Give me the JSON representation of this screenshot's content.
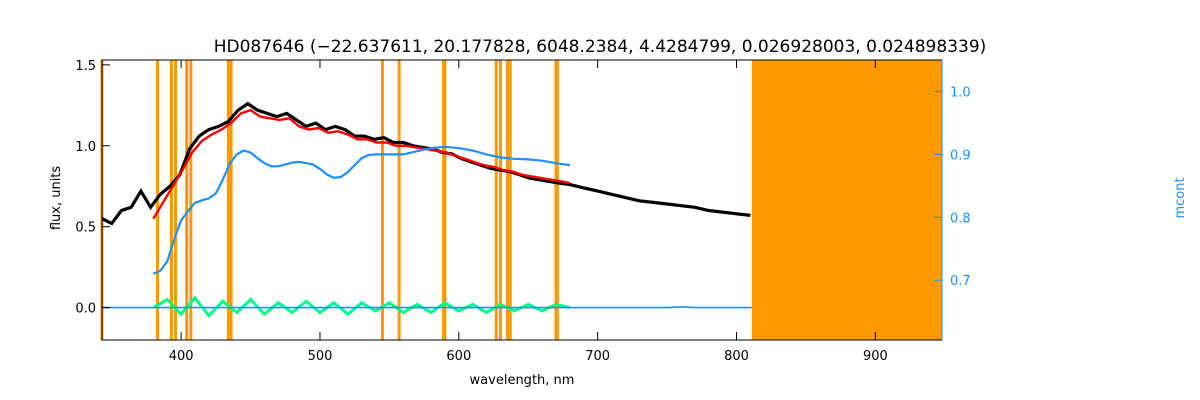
{
  "chart_data": {
    "type": "line",
    "title": "HD087646   (−22.637611, 20.177828, 6048.2384, 4.4284799, 0.026928003, 0.024898339)",
    "xlabel": "wavelength, nm",
    "ylabel": "flux, units",
    "y2label": "mcont",
    "xlim": [
      343,
      948
    ],
    "ylim": [
      -0.2,
      1.53
    ],
    "y2lim": [
      0.605,
      1.05
    ],
    "x_ticks": [
      400,
      500,
      600,
      700,
      800,
      900
    ],
    "x_tick_labels": [
      "400",
      "500",
      "600",
      "700",
      "800",
      "900"
    ],
    "y_ticks": [
      0.0,
      0.5,
      1.0,
      1.5
    ],
    "y_tick_labels": [
      "0.0",
      "0.5",
      "1.0",
      "1.5"
    ],
    "y2_ticks": [
      0.7,
      0.8,
      0.9,
      1.0
    ],
    "y2_tick_labels": [
      "0.7",
      "0.8",
      "0.9",
      "1.0"
    ],
    "grid": false,
    "colors": {
      "observed": "#000000",
      "model": "#ff0000",
      "continuum": "#1e90ff",
      "residuals": "#00ff7f",
      "masks": "#ff9900",
      "right_axis": "#1e90ff"
    },
    "masked_region": [
      811,
      948
    ],
    "mask_lines": [
      343,
      383,
      393,
      396,
      404,
      407,
      434,
      436,
      545,
      557,
      589,
      590,
      627,
      630,
      635,
      637,
      670,
      671
    ],
    "series": [
      {
        "key": "observed",
        "x": [
          343,
          350,
          357,
          364,
          371,
          378,
          385,
          392,
          399,
          406,
          413,
          420,
          427,
          434,
          441,
          448,
          455,
          462,
          469,
          476,
          483,
          490,
          497,
          504,
          511,
          518,
          525,
          532,
          539,
          546,
          553,
          560,
          567,
          574,
          581,
          588,
          595,
          602,
          609,
          616,
          623,
          630,
          637,
          644,
          651,
          658,
          665,
          672,
          680,
          690,
          700,
          710,
          720,
          730,
          740,
          750,
          760,
          770,
          780,
          790,
          800,
          810
        ],
        "y": [
          0.55,
          0.52,
          0.6,
          0.62,
          0.72,
          0.62,
          0.7,
          0.75,
          0.82,
          0.98,
          1.06,
          1.1,
          1.12,
          1.15,
          1.22,
          1.26,
          1.22,
          1.2,
          1.18,
          1.2,
          1.16,
          1.12,
          1.14,
          1.1,
          1.12,
          1.1,
          1.06,
          1.06,
          1.04,
          1.05,
          1.02,
          1.02,
          1.0,
          0.99,
          0.98,
          0.96,
          0.95,
          0.92,
          0.9,
          0.88,
          0.86,
          0.85,
          0.84,
          0.82,
          0.8,
          0.79,
          0.78,
          0.77,
          0.76,
          0.74,
          0.72,
          0.7,
          0.68,
          0.66,
          0.65,
          0.64,
          0.63,
          0.62,
          0.6,
          0.59,
          0.58,
          0.57
        ]
      },
      {
        "key": "model",
        "x": [
          380,
          387,
          394,
          401,
          408,
          415,
          422,
          429,
          436,
          443,
          450,
          457,
          464,
          471,
          478,
          485,
          492,
          499,
          506,
          513,
          520,
          527,
          534,
          541,
          548,
          555,
          562,
          569,
          576,
          583,
          590,
          597,
          604,
          611,
          618,
          625,
          632,
          639,
          646,
          653,
          660,
          667,
          674,
          680
        ],
        "y": [
          0.55,
          0.65,
          0.75,
          0.85,
          0.96,
          1.03,
          1.07,
          1.1,
          1.14,
          1.2,
          1.22,
          1.18,
          1.17,
          1.16,
          1.17,
          1.12,
          1.1,
          1.11,
          1.08,
          1.09,
          1.07,
          1.04,
          1.04,
          1.02,
          1.02,
          1.0,
          1.0,
          0.99,
          0.98,
          0.97,
          0.96,
          0.94,
          0.92,
          0.9,
          0.88,
          0.87,
          0.85,
          0.84,
          0.82,
          0.81,
          0.8,
          0.79,
          0.78,
          0.77
        ]
      },
      {
        "key": "continuum",
        "axis": "right",
        "x": [
          380,
          385,
          390,
          395,
          400,
          405,
          410,
          415,
          420,
          425,
          430,
          435,
          440,
          445,
          450,
          455,
          460,
          465,
          470,
          475,
          480,
          485,
          490,
          495,
          500,
          505,
          510,
          515,
          520,
          525,
          530,
          535,
          540,
          550,
          560,
          570,
          580,
          590,
          600,
          610,
          620,
          630,
          640,
          650,
          660,
          670,
          680
        ],
        "y": [
          0.71,
          0.715,
          0.73,
          0.765,
          0.795,
          0.81,
          0.823,
          0.827,
          0.83,
          0.838,
          0.86,
          0.885,
          0.9,
          0.906,
          0.903,
          0.894,
          0.886,
          0.881,
          0.881,
          0.884,
          0.887,
          0.888,
          0.886,
          0.884,
          0.877,
          0.868,
          0.863,
          0.864,
          0.872,
          0.883,
          0.894,
          0.899,
          0.9,
          0.9,
          0.9,
          0.905,
          0.91,
          0.912,
          0.91,
          0.906,
          0.9,
          0.895,
          0.893,
          0.892,
          0.89,
          0.886,
          0.883
        ]
      },
      {
        "key": "continuum_baseline",
        "x": [
          343,
          400,
          500,
          600,
          680,
          700,
          750,
          760,
          770,
          811
        ],
        "y": [
          0.0,
          0.0,
          0.0,
          0.0,
          0.0,
          0.0,
          0.0,
          0.005,
          0.0,
          0.0
        ]
      },
      {
        "key": "residuals",
        "x": [
          380,
          390,
          400,
          410,
          420,
          430,
          440,
          450,
          460,
          470,
          480,
          490,
          500,
          510,
          520,
          530,
          540,
          550,
          560,
          570,
          580,
          590,
          600,
          610,
          620,
          630,
          640,
          650,
          660,
          670,
          680
        ],
        "y": [
          0.0,
          0.05,
          -0.04,
          0.06,
          -0.05,
          0.04,
          -0.03,
          0.05,
          -0.04,
          0.03,
          -0.03,
          0.04,
          -0.03,
          0.03,
          -0.04,
          0.03,
          -0.02,
          0.03,
          -0.03,
          0.02,
          -0.03,
          0.03,
          -0.02,
          0.02,
          -0.03,
          0.02,
          -0.02,
          0.02,
          -0.02,
          0.02,
          0.0
        ]
      }
    ]
  }
}
